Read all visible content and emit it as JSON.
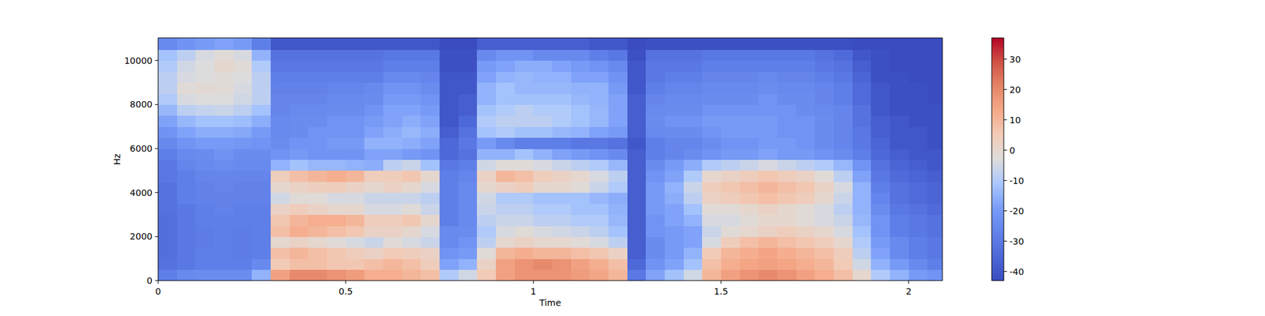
{
  "chart_data": {
    "type": "heatmap",
    "x_label": "Time",
    "y_label": "Hz",
    "x": [
      0,
      0.05,
      0.1,
      0.15,
      0.2,
      0.25,
      0.3,
      0.35,
      0.4,
      0.45,
      0.5,
      0.55,
      0.6,
      0.65,
      0.7,
      0.75,
      0.8,
      0.85,
      0.9,
      0.95,
      1,
      1.05,
      1.1,
      1.15,
      1.2,
      1.25,
      1.3,
      1.35,
      1.4,
      1.45,
      1.5,
      1.55,
      1.6,
      1.65,
      1.7,
      1.75,
      1.8,
      1.85,
      1.9,
      1.95,
      2,
      2.05
    ],
    "y": [
      0,
      500,
      1000,
      1500,
      2000,
      2500,
      3000,
      3500,
      4000,
      4500,
      5000,
      5500,
      6000,
      6500,
      7000,
      7500,
      8000,
      8500,
      9000,
      9500,
      10000,
      10500
    ],
    "xlim": [
      0,
      2.09
    ],
    "ylim": [
      0,
      11025
    ],
    "xticks": [
      0,
      0.5,
      1,
      1.5,
      2
    ],
    "yticks": [
      0,
      2000,
      4000,
      6000,
      8000,
      10000
    ],
    "values": [
      [
        -28,
        -32,
        -33,
        -33,
        -33,
        -33,
        -32,
        -32,
        -32,
        -30,
        -30,
        -28,
        -25,
        -22,
        -18,
        -14,
        -10,
        -8,
        -8,
        -10,
        -12,
        -25
      ],
      [
        -25,
        -30,
        -30,
        -30,
        -30,
        -30,
        -30,
        -28,
        -28,
        -28,
        -26,
        -25,
        -22,
        -18,
        -14,
        -8,
        -4,
        -2,
        -4,
        -5,
        -8,
        -22
      ],
      [
        -24,
        -28,
        -28,
        -29,
        -29,
        -28,
        -28,
        -27,
        -27,
        -26,
        -25,
        -24,
        -20,
        -16,
        -12,
        -7,
        -3,
        -1,
        -3,
        -3,
        -4,
        -20
      ],
      [
        -24,
        -28,
        -28,
        -28,
        -28,
        -28,
        -27,
        -27,
        -26,
        -26,
        -24,
        -22,
        -20,
        -16,
        -12,
        -6,
        -3,
        -2,
        -2,
        0,
        -2,
        -18
      ],
      [
        -24,
        -28,
        -29,
        -29,
        -29,
        -28,
        -28,
        -27,
        -27,
        -26,
        -25,
        -24,
        -21,
        -17,
        -13,
        -8,
        -5,
        -4,
        -3,
        -2,
        -4,
        -20
      ],
      [
        -15,
        -25,
        -28,
        -28,
        -28,
        -28,
        -28,
        -27,
        -27,
        -26,
        -25,
        -24,
        -22,
        -20,
        -16,
        -12,
        -8,
        -8,
        -8,
        -10,
        -15,
        -28
      ],
      [
        15,
        5,
        8,
        0,
        8,
        6,
        2,
        -5,
        0,
        4,
        -15,
        -22,
        -24,
        -25,
        -25,
        -26,
        -26,
        -27,
        -28,
        -30,
        -32,
        -40
      ],
      [
        20,
        8,
        10,
        2,
        12,
        10,
        4,
        -2,
        2,
        8,
        -12,
        -20,
        -22,
        -24,
        -24,
        -25,
        -26,
        -27,
        -28,
        -30,
        -32,
        -40
      ],
      [
        20,
        8,
        8,
        0,
        10,
        12,
        2,
        -2,
        3,
        10,
        -14,
        -22,
        -22,
        -22,
        -24,
        -25,
        -26,
        -27,
        -28,
        -30,
        -32,
        -40
      ],
      [
        18,
        6,
        6,
        -2,
        8,
        12,
        0,
        -4,
        4,
        12,
        -14,
        -22,
        -20,
        -22,
        -22,
        -24,
        -25,
        -26,
        -28,
        -30,
        -32,
        -40
      ],
      [
        16,
        6,
        4,
        -4,
        6,
        10,
        0,
        -4,
        2,
        10,
        -15,
        -22,
        -20,
        -22,
        -22,
        -24,
        -25,
        -26,
        -28,
        -30,
        -32,
        -40
      ],
      [
        12,
        8,
        2,
        -6,
        2,
        4,
        -4,
        -6,
        0,
        4,
        -16,
        -18,
        -15,
        -18,
        -20,
        -22,
        -24,
        -25,
        -28,
        -30,
        -32,
        -40
      ],
      [
        12,
        10,
        5,
        -2,
        2,
        4,
        -4,
        -6,
        2,
        4,
        -8,
        -18,
        -15,
        -16,
        -18,
        -18,
        -20,
        -22,
        -25,
        -28,
        -30,
        -40
      ],
      [
        10,
        8,
        4,
        -4,
        0,
        6,
        -2,
        -6,
        0,
        6,
        -6,
        -20,
        -16,
        -14,
        -16,
        -18,
        -20,
        -22,
        -25,
        -28,
        -30,
        -40
      ],
      [
        8,
        4,
        2,
        -6,
        -4,
        0,
        -6,
        -8,
        -4,
        0,
        -12,
        -22,
        -18,
        -16,
        -18,
        -20,
        -22,
        -24,
        -26,
        -28,
        -30,
        -40
      ],
      [
        -10,
        -18,
        -22,
        -25,
        -25,
        -28,
        -28,
        -28,
        -28,
        -28,
        -30,
        -35,
        -35,
        -38,
        -40,
        -40,
        -40,
        -40,
        -40,
        -42,
        -42,
        -43
      ],
      [
        -5,
        -15,
        -20,
        -22,
        -24,
        -25,
        -25,
        -25,
        -25,
        -26,
        -28,
        -32,
        -30,
        -32,
        -35,
        -38,
        -38,
        -40,
        -40,
        -42,
        -42,
        -43
      ],
      [
        5,
        2,
        -2,
        -8,
        -10,
        -8,
        -6,
        -5,
        0,
        2,
        -5,
        -15,
        -20,
        -12,
        -10,
        -12,
        -15,
        -15,
        -18,
        -20,
        -25,
        -38
      ],
      [
        15,
        15,
        10,
        0,
        -4,
        -6,
        -8,
        -10,
        2,
        10,
        -2,
        -15,
        -25,
        -10,
        -8,
        -10,
        -12,
        -12,
        -15,
        -18,
        -22,
        -38
      ],
      [
        18,
        18,
        12,
        2,
        -2,
        -6,
        -8,
        -10,
        4,
        8,
        -2,
        -12,
        -28,
        -12,
        -8,
        -8,
        -12,
        -14,
        -14,
        -16,
        -22,
        -38
      ],
      [
        18,
        20,
        10,
        0,
        -4,
        -8,
        -10,
        -12,
        0,
        4,
        -4,
        -15,
        -28,
        -12,
        -8,
        -10,
        -12,
        -14,
        -15,
        -16,
        -25,
        -38
      ],
      [
        18,
        18,
        10,
        0,
        -5,
        -8,
        -10,
        -12,
        0,
        2,
        -6,
        -18,
        -28,
        -14,
        -10,
        -10,
        -12,
        -14,
        -15,
        -18,
        -25,
        -38
      ],
      [
        16,
        15,
        8,
        -2,
        -6,
        -10,
        -12,
        -12,
        -2,
        0,
        -8,
        -20,
        -30,
        -15,
        -12,
        -12,
        -14,
        -15,
        -18,
        -20,
        -25,
        -38
      ],
      [
        14,
        12,
        6,
        -4,
        -8,
        -10,
        -12,
        -14,
        -6,
        -4,
        -10,
        -22,
        -30,
        -18,
        -14,
        -14,
        -15,
        -15,
        -18,
        -22,
        -28,
        -40
      ],
      [
        10,
        8,
        2,
        -8,
        -12,
        -14,
        -15,
        -16,
        -10,
        -8,
        -14,
        -25,
        -32,
        -20,
        -18,
        -18,
        -18,
        -20,
        -22,
        -25,
        -30,
        -40
      ],
      [
        -30,
        -35,
        -38,
        -38,
        -38,
        -38,
        -38,
        -38,
        -38,
        -38,
        -38,
        -38,
        -40,
        -38,
        -38,
        -38,
        -38,
        -40,
        -40,
        -40,
        -42,
        -43
      ],
      [
        -18,
        -22,
        -24,
        -24,
        -22,
        -22,
        -20,
        -20,
        -20,
        -22,
        -24,
        -28,
        -28,
        -25,
        -24,
        -25,
        -26,
        -28,
        -30,
        -30,
        -32,
        -42
      ],
      [
        -12,
        -18,
        -20,
        -20,
        -20,
        -18,
        -18,
        -16,
        -15,
        -18,
        -20,
        -26,
        -26,
        -24,
        -22,
        -24,
        -25,
        -26,
        -28,
        -30,
        -32,
        -42
      ],
      [
        -5,
        -12,
        -15,
        -18,
        -18,
        -15,
        -12,
        -8,
        -6,
        -10,
        -16,
        -24,
        -26,
        -24,
        -22,
        -24,
        -25,
        -26,
        -28,
        -30,
        -32,
        -42
      ],
      [
        10,
        8,
        5,
        -4,
        -6,
        -4,
        -2,
        2,
        4,
        0,
        -10,
        -22,
        -24,
        -22,
        -20,
        -22,
        -24,
        -25,
        -26,
        -28,
        -30,
        -42
      ],
      [
        15,
        12,
        10,
        4,
        -2,
        -4,
        -2,
        4,
        6,
        2,
        -8,
        -20,
        -22,
        -20,
        -20,
        -22,
        -24,
        -25,
        -26,
        -28,
        -30,
        -42
      ],
      [
        18,
        14,
        12,
        8,
        0,
        -2,
        0,
        6,
        8,
        4,
        -6,
        -20,
        -22,
        -20,
        -20,
        -22,
        -24,
        -25,
        -26,
        -28,
        -30,
        -42
      ],
      [
        20,
        15,
        14,
        10,
        2,
        0,
        2,
        8,
        10,
        6,
        -4,
        -18,
        -20,
        -20,
        -20,
        -22,
        -22,
        -24,
        -25,
        -28,
        -30,
        -42
      ],
      [
        18,
        14,
        12,
        8,
        4,
        0,
        0,
        6,
        8,
        4,
        -6,
        -20,
        -20,
        -22,
        -22,
        -22,
        -24,
        -25,
        -26,
        -28,
        -30,
        -42
      ],
      [
        15,
        12,
        10,
        6,
        2,
        -2,
        -2,
        4,
        6,
        2,
        -8,
        -20,
        -22,
        -22,
        -22,
        -24,
        -24,
        -25,
        -26,
        -28,
        -30,
        -42
      ],
      [
        12,
        10,
        8,
        4,
        0,
        -4,
        -4,
        0,
        2,
        -2,
        -10,
        -22,
        -24,
        -24,
        -24,
        -25,
        -26,
        -26,
        -28,
        -30,
        -32,
        -42
      ],
      [
        8,
        5,
        4,
        0,
        -4,
        -6,
        -8,
        -6,
        -4,
        -8,
        -14,
        -24,
        -26,
        -26,
        -26,
        -26,
        -28,
        -28,
        -30,
        -32,
        -34,
        -42
      ],
      [
        0,
        -5,
        -8,
        -10,
        -12,
        -14,
        -15,
        -15,
        -15,
        -18,
        -22,
        -28,
        -30,
        -30,
        -32,
        -32,
        -34,
        -34,
        -36,
        -38,
        -40,
        -43
      ],
      [
        -10,
        -15,
        -18,
        -20,
        -22,
        -22,
        -24,
        -26,
        -28,
        -30,
        -32,
        -35,
        -36,
        -38,
        -38,
        -40,
        -40,
        -40,
        -42,
        -42,
        -42,
        -43
      ],
      [
        -15,
        -20,
        -25,
        -25,
        -28,
        -28,
        -30,
        -32,
        -32,
        -34,
        -36,
        -38,
        -40,
        -40,
        -40,
        -42,
        -42,
        -42,
        -42,
        -43,
        -43,
        -43
      ],
      [
        -20,
        -25,
        -28,
        -28,
        -30,
        -30,
        -32,
        -34,
        -34,
        -36,
        -38,
        -40,
        -40,
        -40,
        -42,
        -42,
        -42,
        -42,
        -43,
        -43,
        -43,
        -43
      ],
      [
        -22,
        -28,
        -30,
        -30,
        -32,
        -32,
        -34,
        -36,
        -36,
        -38,
        -40,
        -40,
        -42,
        -42,
        -42,
        -42,
        -43,
        -43,
        -43,
        -43,
        -43,
        -43
      ]
    ],
    "colorbar": {
      "range": [
        -43,
        37
      ],
      "ticks": [
        -40,
        -30,
        -20,
        -10,
        0,
        10,
        20,
        30
      ]
    }
  }
}
